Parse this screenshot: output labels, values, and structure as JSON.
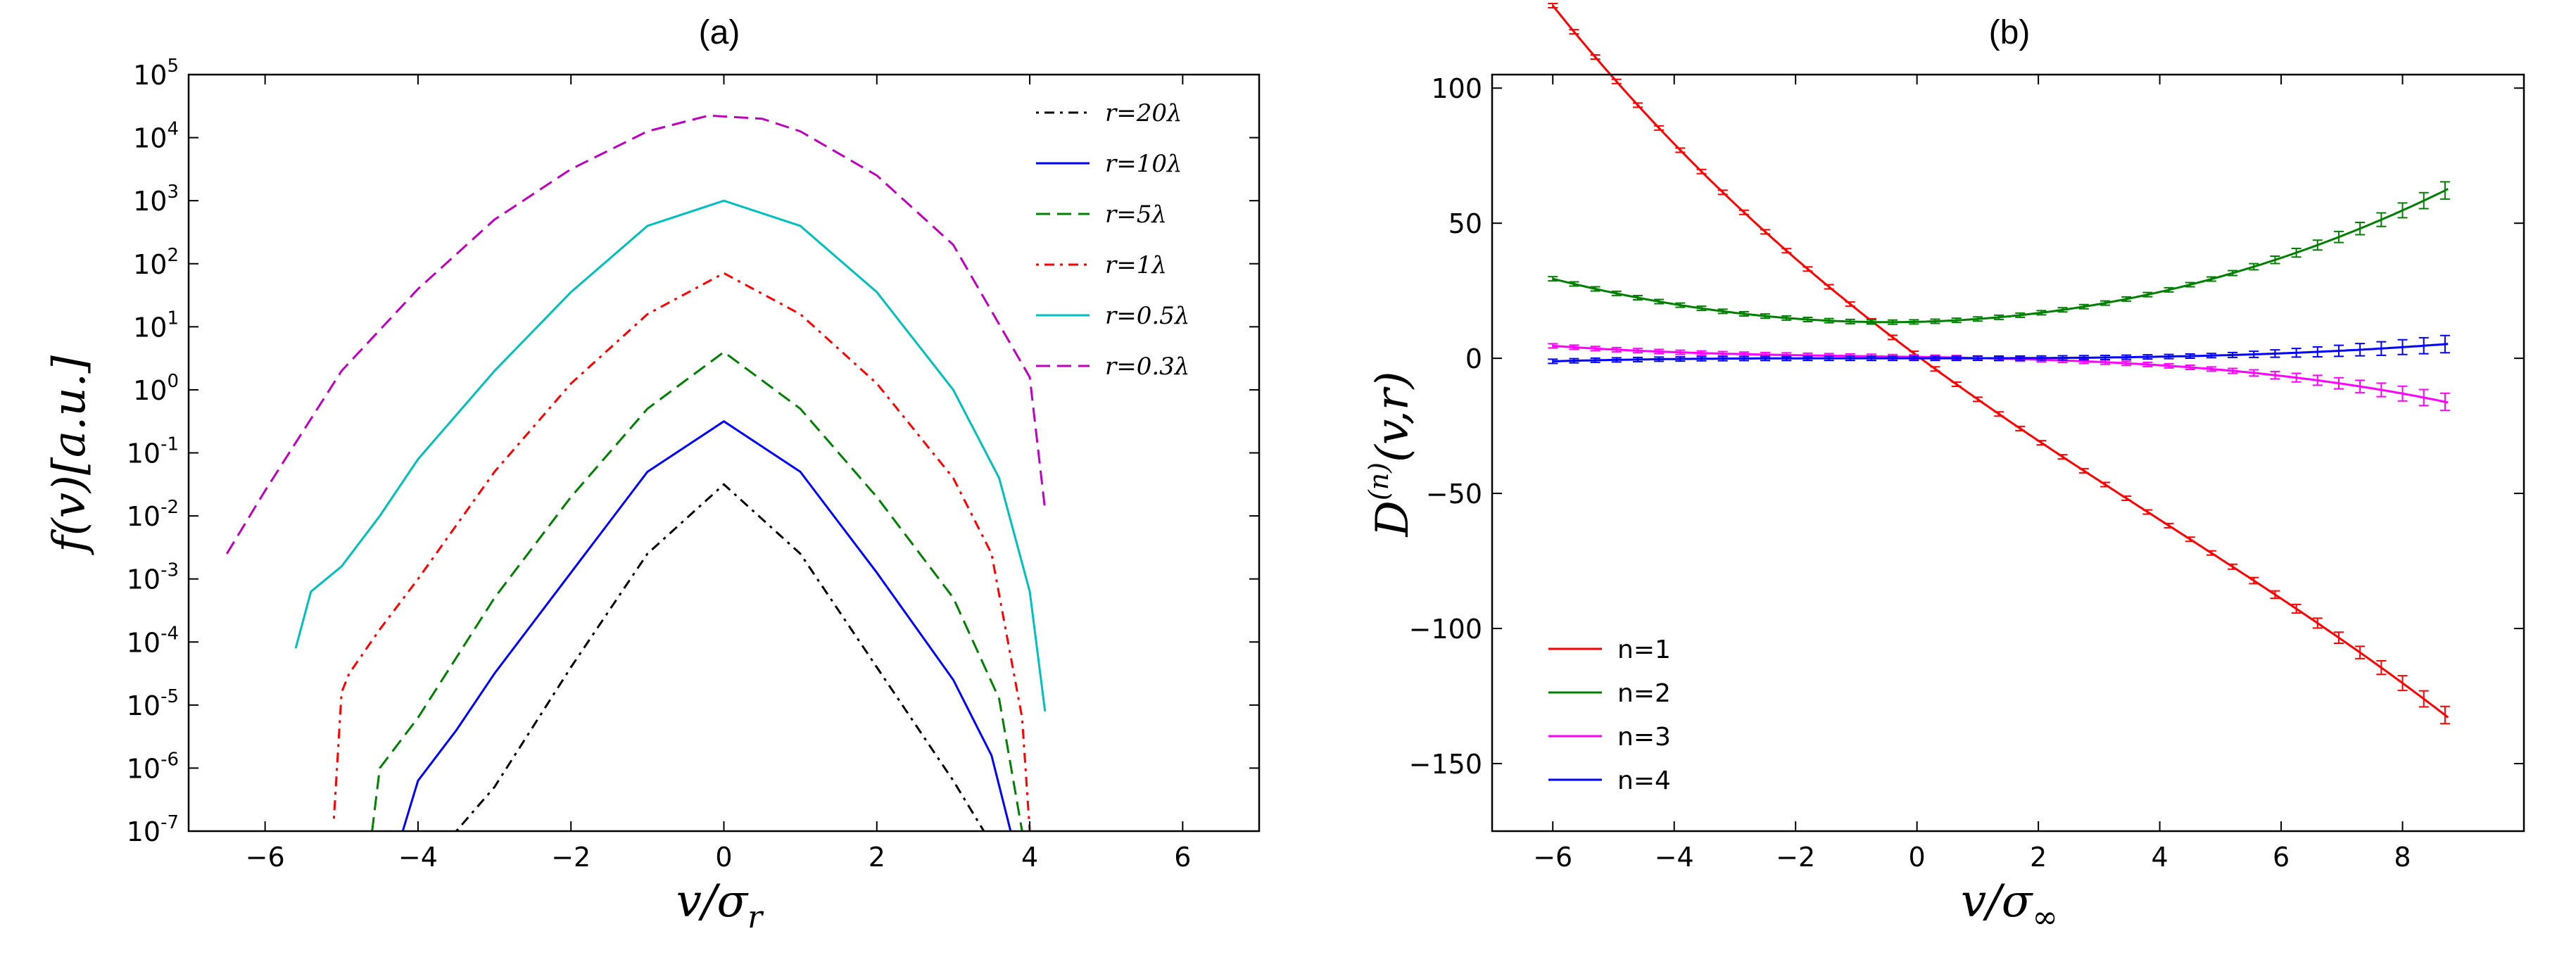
{
  "chart_data": [
    {
      "type": "line",
      "panel": "(a)",
      "title": "(a)",
      "xlabel": "v/σ_r",
      "xlabel_main": "v/σ",
      "xlabel_sub": "r",
      "ylabel": "f(v)[a.u.]",
      "xlim": [
        -7,
        7
      ],
      "ylim_exp": [
        -7,
        5
      ],
      "yscale": "log",
      "xticks": [
        "−6",
        "−4",
        "−2",
        "0",
        "2",
        "4",
        "6"
      ],
      "xtick_values": [
        -6,
        -4,
        -2,
        0,
        2,
        4,
        6
      ],
      "yticks": [
        {
          "base": "10",
          "exp": "-7"
        },
        {
          "base": "10",
          "exp": "-6"
        },
        {
          "base": "10",
          "exp": "-5"
        },
        {
          "base": "10",
          "exp": "-4"
        },
        {
          "base": "10",
          "exp": "-3"
        },
        {
          "base": "10",
          "exp": "-2"
        },
        {
          "base": "10",
          "exp": "-1"
        },
        {
          "base": "10",
          "exp": "0"
        },
        {
          "base": "10",
          "exp": "1"
        },
        {
          "base": "10",
          "exp": "2"
        },
        {
          "base": "10",
          "exp": "3"
        },
        {
          "base": "10",
          "exp": "4"
        },
        {
          "base": "10",
          "exp": "5"
        }
      ],
      "legend_position": "top-right",
      "series": [
        {
          "name": "r=20λ",
          "color": "#000000",
          "dash": "dashdot",
          "x": [
            -3.5,
            -3,
            -2,
            -1,
            0,
            1,
            2,
            3,
            3.4
          ],
          "log10": [
            -7,
            -6.3,
            -4.4,
            -2.6,
            -1.5,
            -2.6,
            -4.4,
            -6.2,
            -7
          ]
        },
        {
          "name": "r=10λ",
          "color": "#0000ff",
          "dash": "solid",
          "x": [
            -4.2,
            -4,
            -3.5,
            -3,
            -2,
            -1,
            0,
            1,
            2,
            3,
            3.5,
            3.75
          ],
          "log10": [
            -7,
            -6.2,
            -5.4,
            -4.5,
            -2.9,
            -1.3,
            -0.5,
            -1.3,
            -2.9,
            -4.6,
            -5.8,
            -7
          ]
        },
        {
          "name": "r=5λ",
          "color": "#008000",
          "dash": "dashed",
          "x": [
            -4.6,
            -4.5,
            -4,
            -3,
            -2,
            -1,
            0,
            1,
            2,
            3,
            3.6,
            3.9
          ],
          "log10": [
            -7,
            -6,
            -5.2,
            -3.3,
            -1.7,
            -0.3,
            0.6,
            -0.3,
            -1.7,
            -3.3,
            -4.9,
            -7
          ]
        },
        {
          "name": "r=1λ",
          "color": "#ff0000",
          "dash": "dashdot",
          "x": [
            -5.1,
            -5.0,
            -4.9,
            -4.5,
            -4,
            -3,
            -2,
            -1,
            0,
            1,
            2,
            3,
            3.5,
            3.9,
            4.0
          ],
          "log10": [
            -6.8,
            -4.8,
            -4.5,
            -3.8,
            -3.0,
            -1.3,
            0.1,
            1.2,
            1.85,
            1.2,
            0.1,
            -1.4,
            -2.6,
            -5.2,
            -7
          ]
        },
        {
          "name": "r=0.5λ",
          "color": "#00bfbf",
          "dash": "solid",
          "x": [
            -5.6,
            -5.4,
            -5.0,
            -4.5,
            -4,
            -3,
            -2,
            -1,
            0,
            1,
            2,
            3,
            3.6,
            4.0,
            4.2
          ],
          "log10": [
            -4.1,
            -3.2,
            -2.8,
            -2.0,
            -1.1,
            0.3,
            1.55,
            2.6,
            3.0,
            2.6,
            1.55,
            0.0,
            -1.4,
            -3.2,
            -5.1
          ]
        },
        {
          "name": "r=0.3λ",
          "color": "#bf00bf",
          "dash": "dashed",
          "x": [
            -6.5,
            -6,
            -5,
            -4,
            -3,
            -2,
            -1,
            -0.2,
            0.5,
            1,
            2,
            3,
            4,
            4.2
          ],
          "log10": [
            -2.6,
            -1.6,
            0.3,
            1.6,
            2.7,
            3.5,
            4.1,
            4.35,
            4.3,
            4.1,
            3.4,
            2.3,
            0.2,
            -1.9
          ]
        }
      ]
    },
    {
      "type": "line",
      "panel": "(b)",
      "title": "(b)",
      "xlabel": "v/σ_∞",
      "xlabel_main": "v/σ",
      "xlabel_sub": "∞",
      "ylabel": "D^(n)(v,r)",
      "ylabel_main": "D",
      "ylabel_sup": "(n)",
      "ylabel_tail": "(v,r)",
      "xlim": [
        -7,
        10
      ],
      "ylim": [
        -175,
        105
      ],
      "xticks": [
        "−6",
        "−4",
        "−2",
        "0",
        "2",
        "4",
        "6",
        "8"
      ],
      "xtick_values": [
        -6,
        -4,
        -2,
        0,
        2,
        4,
        6,
        8
      ],
      "yticks": [
        "100",
        "50",
        "0",
        "−50",
        "−100",
        "−150"
      ],
      "ytick_values": [
        100,
        50,
        0,
        -50,
        -100,
        -150
      ],
      "legend_position": "bottom-left",
      "series": [
        {
          "name": "n=1",
          "color": "#ff0000",
          "fit": [
            1.0,
            -16.67,
            0.55,
            -0.045
          ]
        },
        {
          "name": "n=2",
          "color": "#008000",
          "fit": [
            13.5,
            0.5,
            0.55,
            0.004
          ]
        },
        {
          "name": "n=3",
          "color": "#ff00ff",
          "fit": [
            0.5,
            -0.35,
            -0.04,
            -0.016
          ]
        },
        {
          "name": "n=4",
          "color": "#0000ff",
          "fit": [
            0.0,
            0.0,
            0.01,
            0.0068
          ]
        }
      ],
      "points_x_start": -6.0,
      "points_x_step": 0.35,
      "points_count": 43
    }
  ]
}
